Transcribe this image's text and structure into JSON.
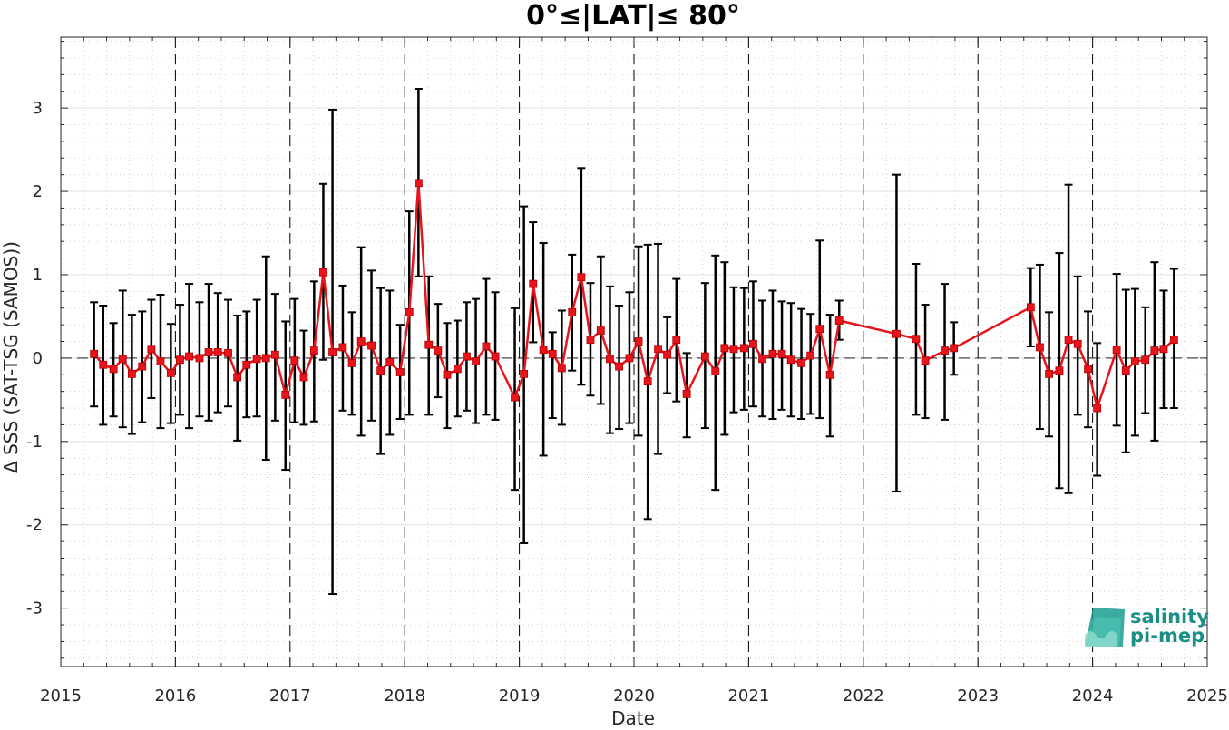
{
  "chart_data": {
    "type": "line",
    "title": "0°≤|LAT|≤ 80°",
    "xlabel": "Date",
    "ylabel": "Δ SSS (SAT-TSG (SAMOS))",
    "xlim": [
      2015,
      2025
    ],
    "ylim": [
      -3.7,
      3.85
    ],
    "x_ticks": [
      2015,
      2016,
      2017,
      2018,
      2019,
      2020,
      2021,
      2022,
      2023,
      2024,
      2025
    ],
    "x_tick_labels": [
      "2015",
      "2016",
      "2017",
      "2018",
      "2019",
      "2020",
      "2021",
      "2022",
      "2023",
      "2024",
      "2025"
    ],
    "y_ticks": [
      -3,
      -2,
      -1,
      0,
      1,
      2,
      3
    ],
    "y_tick_labels": [
      "-3",
      "-2",
      "-1",
      "0",
      "1",
      "2",
      "3"
    ],
    "grid": "on",
    "year_boundary_lines": "dashed",
    "zero_line": "dashed",
    "series": [
      {
        "color": "#e8141c",
        "marker": "square",
        "errorbar_color": "#000000",
        "x": [
          2015.29,
          2015.37,
          2015.46,
          2015.54,
          2015.62,
          2015.71,
          2015.79,
          2015.87,
          2015.96,
          2016.04,
          2016.12,
          2016.21,
          2016.29,
          2016.37,
          2016.46,
          2016.54,
          2016.62,
          2016.71,
          2016.79,
          2016.87,
          2016.96,
          2017.04,
          2017.12,
          2017.21,
          2017.29,
          2017.37,
          2017.46,
          2017.54,
          2017.62,
          2017.71,
          2017.79,
          2017.87,
          2017.96,
          2018.04,
          2018.12,
          2018.21,
          2018.29,
          2018.37,
          2018.46,
          2018.54,
          2018.62,
          2018.71,
          2018.79,
          2018.96,
          2019.04,
          2019.12,
          2019.21,
          2019.29,
          2019.37,
          2019.46,
          2019.54,
          2019.62,
          2019.71,
          2019.79,
          2019.87,
          2019.96,
          2020.04,
          2020.12,
          2020.21,
          2020.29,
          2020.37,
          2020.46,
          2020.62,
          2020.71,
          2020.79,
          2020.87,
          2020.96,
          2021.04,
          2021.12,
          2021.21,
          2021.29,
          2021.37,
          2021.46,
          2021.54,
          2021.62,
          2021.71,
          2021.79,
          2022.29,
          2022.46,
          2022.54,
          2022.71,
          2022.79,
          2023.46,
          2023.54,
          2023.62,
          2023.71,
          2023.79,
          2023.87,
          2023.96,
          2024.04,
          2024.21,
          2024.29,
          2024.37,
          2024.46,
          2024.54,
          2024.62,
          2024.71
        ],
        "y": [
          0.05,
          -0.08,
          -0.13,
          -0.01,
          -0.19,
          -0.1,
          0.11,
          -0.04,
          -0.18,
          -0.02,
          0.02,
          0.0,
          0.07,
          0.07,
          0.06,
          -0.23,
          -0.08,
          -0.01,
          0.0,
          0.04,
          -0.44,
          -0.03,
          -0.23,
          0.09,
          1.03,
          0.07,
          0.13,
          -0.06,
          0.2,
          0.15,
          -0.15,
          -0.05,
          -0.17,
          0.55,
          2.1,
          0.16,
          0.09,
          -0.2,
          -0.13,
          0.02,
          -0.04,
          0.14,
          0.02,
          -0.47,
          -0.19,
          0.89,
          0.1,
          0.05,
          -0.12,
          0.55,
          0.97,
          0.22,
          0.33,
          -0.01,
          -0.1,
          0.0,
          0.2,
          -0.28,
          0.11,
          0.04,
          0.22,
          -0.43,
          0.02,
          -0.16,
          0.12,
          0.11,
          0.12,
          0.17,
          -0.01,
          0.05,
          0.05,
          -0.02,
          -0.06,
          0.03,
          0.35,
          -0.2,
          0.45,
          0.29,
          0.23,
          -0.03,
          0.09,
          0.12,
          0.61,
          0.13,
          -0.19,
          -0.15,
          0.22,
          0.17,
          -0.13,
          -0.6,
          0.1,
          -0.15,
          -0.04,
          -0.02,
          0.09,
          0.11,
          0.22
        ],
        "err_low": [
          -0.58,
          -0.8,
          -0.7,
          -0.83,
          -0.91,
          -0.77,
          -0.48,
          -0.84,
          -0.78,
          -0.68,
          -0.84,
          -0.7,
          -0.75,
          -0.65,
          -0.58,
          -0.99,
          -0.71,
          -0.7,
          -1.22,
          -0.75,
          -1.34,
          -0.77,
          -0.8,
          -0.76,
          -0.02,
          -2.83,
          -0.63,
          -0.68,
          -0.93,
          -0.75,
          -1.15,
          -0.92,
          -0.73,
          -0.68,
          0.98,
          -0.68,
          -0.47,
          -0.84,
          -0.7,
          -0.63,
          -0.78,
          -0.68,
          -0.74,
          -1.58,
          -2.22,
          0.19,
          -1.17,
          -0.72,
          -0.8,
          -0.15,
          -0.32,
          -0.45,
          -0.55,
          -0.9,
          -0.85,
          -0.78,
          -0.93,
          -1.93,
          -1.15,
          -0.42,
          -0.52,
          -0.95,
          -0.84,
          -1.58,
          -0.92,
          -0.65,
          -0.62,
          -0.58,
          -0.7,
          -0.73,
          -0.62,
          -0.7,
          -0.73,
          -0.67,
          -0.72,
          -0.94,
          0.22,
          -1.6,
          -0.68,
          -0.72,
          -0.74,
          -0.2,
          0.14,
          -0.85,
          -0.94,
          -1.56,
          -1.62,
          -0.68,
          -0.83,
          -1.41,
          -0.81,
          -1.13,
          -0.93,
          -0.66,
          -0.99,
          -0.6,
          -0.6
        ],
        "err_high": [
          0.67,
          0.63,
          0.42,
          0.81,
          0.52,
          0.56,
          0.7,
          0.76,
          0.41,
          0.64,
          0.89,
          0.67,
          0.89,
          0.78,
          0.7,
          0.51,
          0.56,
          0.7,
          1.22,
          0.77,
          0.44,
          0.71,
          0.33,
          0.92,
          2.09,
          2.98,
          0.87,
          0.55,
          1.33,
          1.05,
          0.84,
          0.81,
          0.4,
          1.76,
          3.23,
          0.98,
          0.65,
          0.42,
          0.45,
          0.67,
          0.71,
          0.95,
          0.79,
          0.6,
          1.82,
          1.63,
          1.38,
          0.31,
          0.57,
          1.24,
          2.28,
          0.9,
          1.22,
          0.86,
          0.63,
          0.79,
          1.34,
          1.36,
          1.37,
          0.49,
          0.95,
          0.06,
          0.9,
          1.23,
          1.15,
          0.85,
          0.84,
          0.92,
          0.69,
          0.81,
          0.68,
          0.66,
          0.59,
          0.53,
          1.41,
          0.52,
          0.69,
          2.2,
          1.13,
          0.64,
          0.89,
          0.43,
          1.08,
          1.12,
          0.55,
          1.26,
          2.08,
          0.98,
          0.56,
          0.18,
          1.01,
          0.82,
          0.83,
          0.61,
          1.15,
          0.81,
          1.07
        ]
      }
    ]
  },
  "logo": {
    "line1": "salinity",
    "line2": "pi-mep",
    "color": "#1a9e8f"
  }
}
